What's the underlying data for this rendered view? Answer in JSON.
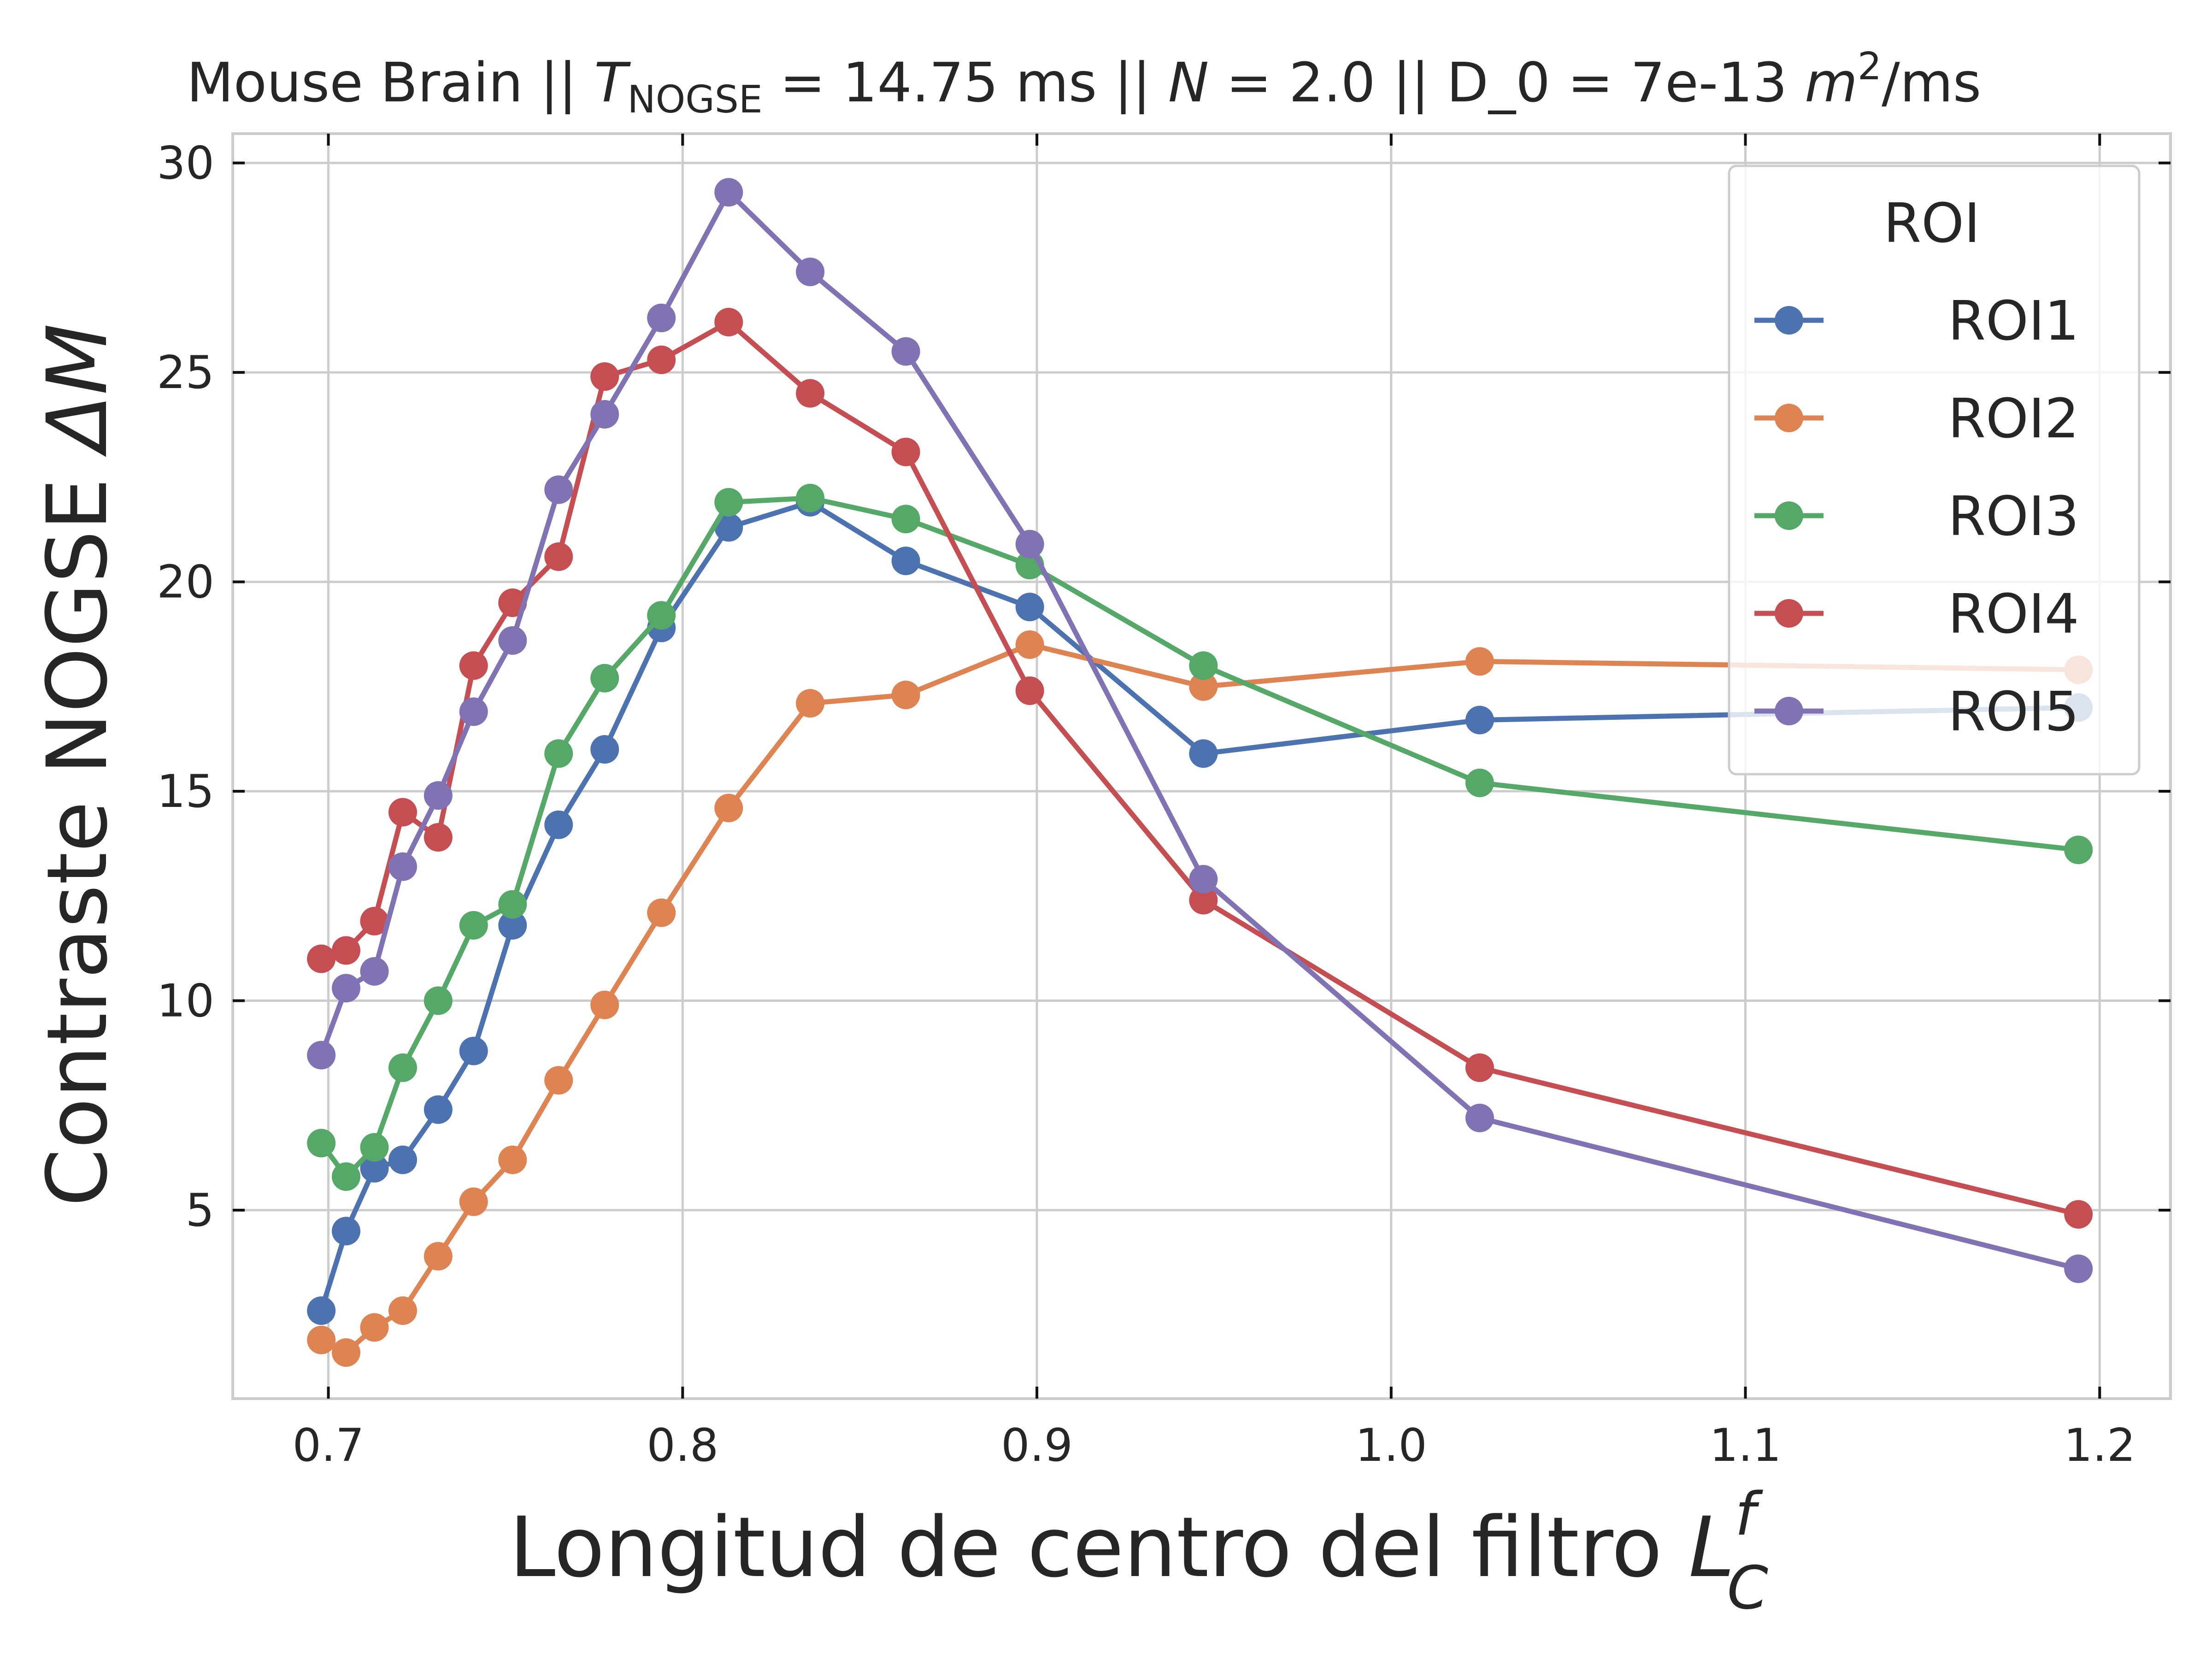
{
  "chart_data": {
    "type": "line",
    "title": {
      "prefix": "Mouse Brain || ",
      "t_symbol": "T",
      "t_sub": "NOGSE",
      "t_value": " = 14.75 ms || ",
      "n_symbol": "N",
      "n_value": " = 2.0 || D_0 = 7e-13 ",
      "d_unit_m": "m",
      "d_unit_exp": "2",
      "d_unit_rest": "/ms"
    },
    "xlabel": {
      "text": "Longitud de centro del filtro ",
      "symbol": "L",
      "sup": "f",
      "sub": "C"
    },
    "ylabel": {
      "text": "Contraste NOGSE ",
      "symbol": "ΔM"
    },
    "xlim": [
      0.673,
      1.22
    ],
    "ylim": [
      0.5,
      30.7
    ],
    "xticks": [
      0.7,
      0.8,
      0.9,
      1.0,
      1.1,
      1.2
    ],
    "xtick_labels": [
      "0.7",
      "0.8",
      "0.9",
      "1.0",
      "1.1",
      "1.2"
    ],
    "yticks": [
      5,
      10,
      15,
      20,
      25,
      30
    ],
    "ytick_labels": [
      "5",
      "10",
      "15",
      "20",
      "25",
      "30"
    ],
    "grid": true,
    "legend": {
      "title": "ROI",
      "placement": "upper-right"
    },
    "x": [
      0.698,
      0.705,
      0.713,
      0.721,
      0.731,
      0.741,
      0.752,
      0.765,
      0.778,
      0.794,
      0.813,
      0.836,
      0.863,
      0.898,
      0.947,
      1.025,
      1.194
    ],
    "series": [
      {
        "name": "ROI1",
        "color": "#4c72b0",
        "values": [
          2.6,
          4.5,
          6.0,
          6.2,
          7.4,
          8.8,
          11.8,
          14.2,
          16.0,
          18.9,
          21.3,
          21.9,
          20.5,
          19.4,
          15.9,
          16.7,
          17.0
        ]
      },
      {
        "name": "ROI2",
        "color": "#dd8452",
        "values": [
          1.9,
          1.6,
          2.2,
          2.6,
          3.9,
          5.2,
          6.2,
          8.1,
          9.9,
          12.1,
          14.6,
          17.1,
          17.3,
          18.5,
          17.5,
          18.1,
          17.9
        ]
      },
      {
        "name": "ROI3",
        "color": "#55a868",
        "values": [
          6.6,
          5.8,
          6.5,
          8.4,
          10.0,
          11.8,
          12.3,
          15.9,
          17.7,
          19.2,
          21.9,
          22.0,
          21.5,
          20.4,
          18.0,
          15.2,
          13.6
        ]
      },
      {
        "name": "ROI4",
        "color": "#c44e52",
        "values": [
          11.0,
          11.2,
          11.9,
          14.5,
          13.9,
          18.0,
          19.5,
          20.6,
          24.9,
          25.3,
          26.2,
          24.5,
          23.1,
          17.4,
          12.4,
          8.4,
          4.9
        ]
      },
      {
        "name": "ROI5",
        "color": "#8172b3",
        "values": [
          8.7,
          10.3,
          10.7,
          13.2,
          14.9,
          16.9,
          18.6,
          22.2,
          24.0,
          26.3,
          29.3,
          27.4,
          25.5,
          20.9,
          12.9,
          7.2,
          3.6
        ]
      }
    ]
  }
}
